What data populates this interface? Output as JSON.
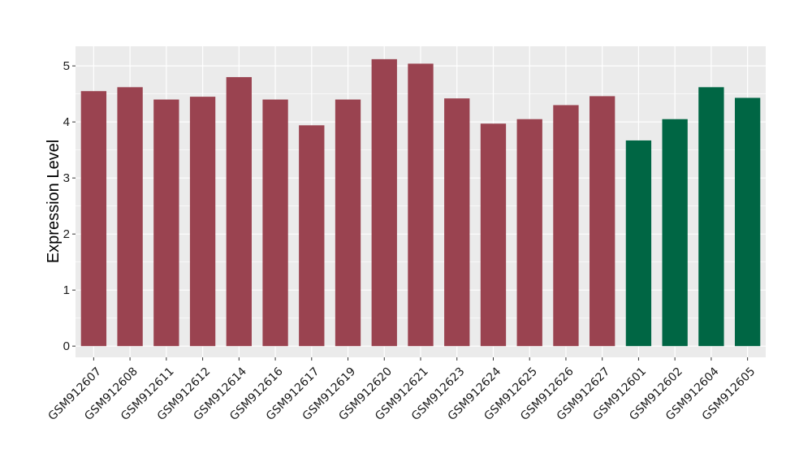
{
  "chart_data": {
    "type": "bar",
    "title": "",
    "xlabel": "",
    "ylabel": "Expression Level",
    "ylim": [
      -0.2,
      5.35
    ],
    "yticks": [
      0,
      1,
      2,
      3,
      4,
      5
    ],
    "grid": true,
    "categories": [
      "GSM912607",
      "GSM912608",
      "GSM912611",
      "GSM912612",
      "GSM912614",
      "GSM912616",
      "GSM912617",
      "GSM912619",
      "GSM912620",
      "GSM912621",
      "GSM912623",
      "GSM912624",
      "GSM912625",
      "GSM912626",
      "GSM912627",
      "GSM912601",
      "GSM912602",
      "GSM912604",
      "GSM912605"
    ],
    "values": [
      4.55,
      4.62,
      4.4,
      4.45,
      4.8,
      4.4,
      3.94,
      4.4,
      5.12,
      5.04,
      4.42,
      3.97,
      4.05,
      4.3,
      4.46,
      3.67,
      4.05,
      4.62,
      4.43
    ],
    "groups": [
      "a",
      "a",
      "a",
      "a",
      "a",
      "a",
      "a",
      "a",
      "a",
      "a",
      "a",
      "a",
      "a",
      "a",
      "a",
      "b",
      "b",
      "b",
      "b"
    ],
    "colors": {
      "a": "#9a4350",
      "b": "#006644"
    },
    "panel_background": "#ebebeb",
    "gridline_color": "#ffffff"
  }
}
